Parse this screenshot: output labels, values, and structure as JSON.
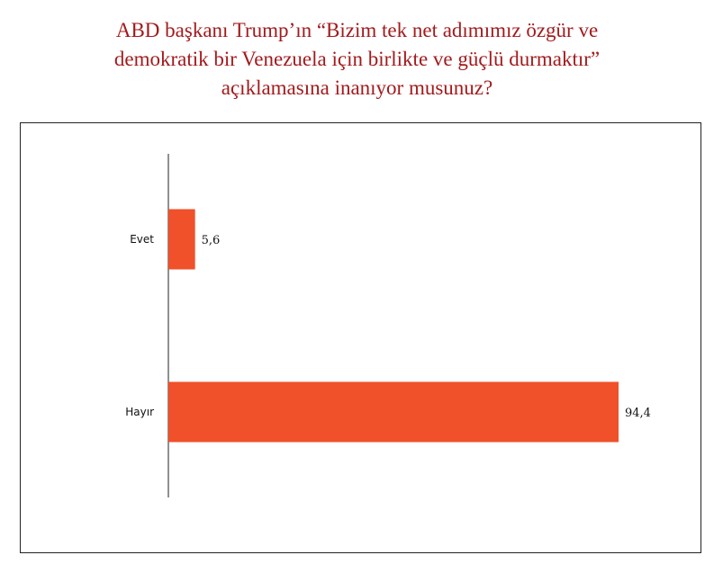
{
  "title_lines": [
    "ABD başkanı Trump’ın “Bizim tek net adımımız özgür ve",
    "demokratik bir Venezuela için birlikte ve güçlü durmaktır”",
    "açıklamasına inanıyor musunuz?"
  ],
  "chart_data": {
    "type": "bar",
    "orientation": "horizontal",
    "title": "ABD başkanı Trump’ın “Bizim tek net adımımız özgür ve demokratik bir Venezuela için birlikte ve güçlü durmaktır” açıklamasına inanıyor musunuz?",
    "categories": [
      "Evet",
      "Hayır"
    ],
    "values": [
      5.6,
      94.4
    ],
    "value_labels": [
      "5,6",
      "94,4"
    ],
    "xlim": [
      0,
      100
    ],
    "grid": false,
    "legend": "none",
    "bar_color": "#f0502a",
    "title_color": "#a31a1c"
  }
}
